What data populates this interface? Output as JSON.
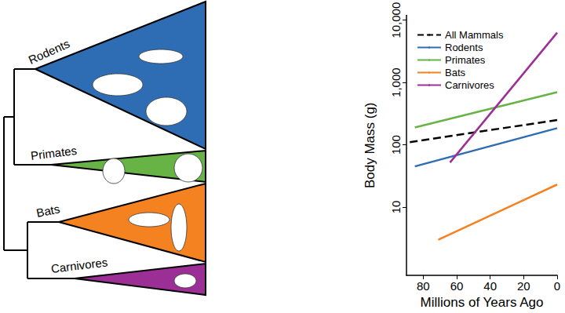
{
  "chart_data": {
    "type": "line",
    "x_label": "Millions of Years Ago",
    "y_label": "Body Mass (g)",
    "log": "y",
    "grid": false,
    "legend": "upper left",
    "xlim": [
      90,
      0
    ],
    "xticks": [
      80,
      60,
      40,
      20,
      0
    ],
    "ylim": [
      0.8,
      12000
    ],
    "yticks": [
      10,
      100,
      1000,
      10000
    ],
    "series": [
      {
        "name": "All Mammals",
        "color": "#000000",
        "line_style": "dashed",
        "x": [
          88,
          0
        ],
        "values": [
          110,
          250
        ]
      },
      {
        "name": "Rodents",
        "color": "#2e6db4",
        "line_style": "solid",
        "x": [
          85,
          0
        ],
        "values": [
          45,
          185
        ]
      },
      {
        "name": "Primates",
        "color": "#67b346",
        "line_style": "solid",
        "x": [
          85,
          0
        ],
        "values": [
          190,
          700
        ]
      },
      {
        "name": "Bats",
        "color": "#f58220",
        "line_style": "solid",
        "x": [
          71,
          0
        ],
        "values": [
          3,
          23
        ]
      },
      {
        "name": "Carnivores",
        "color": "#9c2f95",
        "line_style": "solid",
        "x": [
          64,
          0
        ],
        "values": [
          52,
          6300
        ]
      }
    ]
  },
  "tree": {
    "clades": [
      "Rodents",
      "Primates",
      "Bats",
      "Carnivores"
    ]
  }
}
